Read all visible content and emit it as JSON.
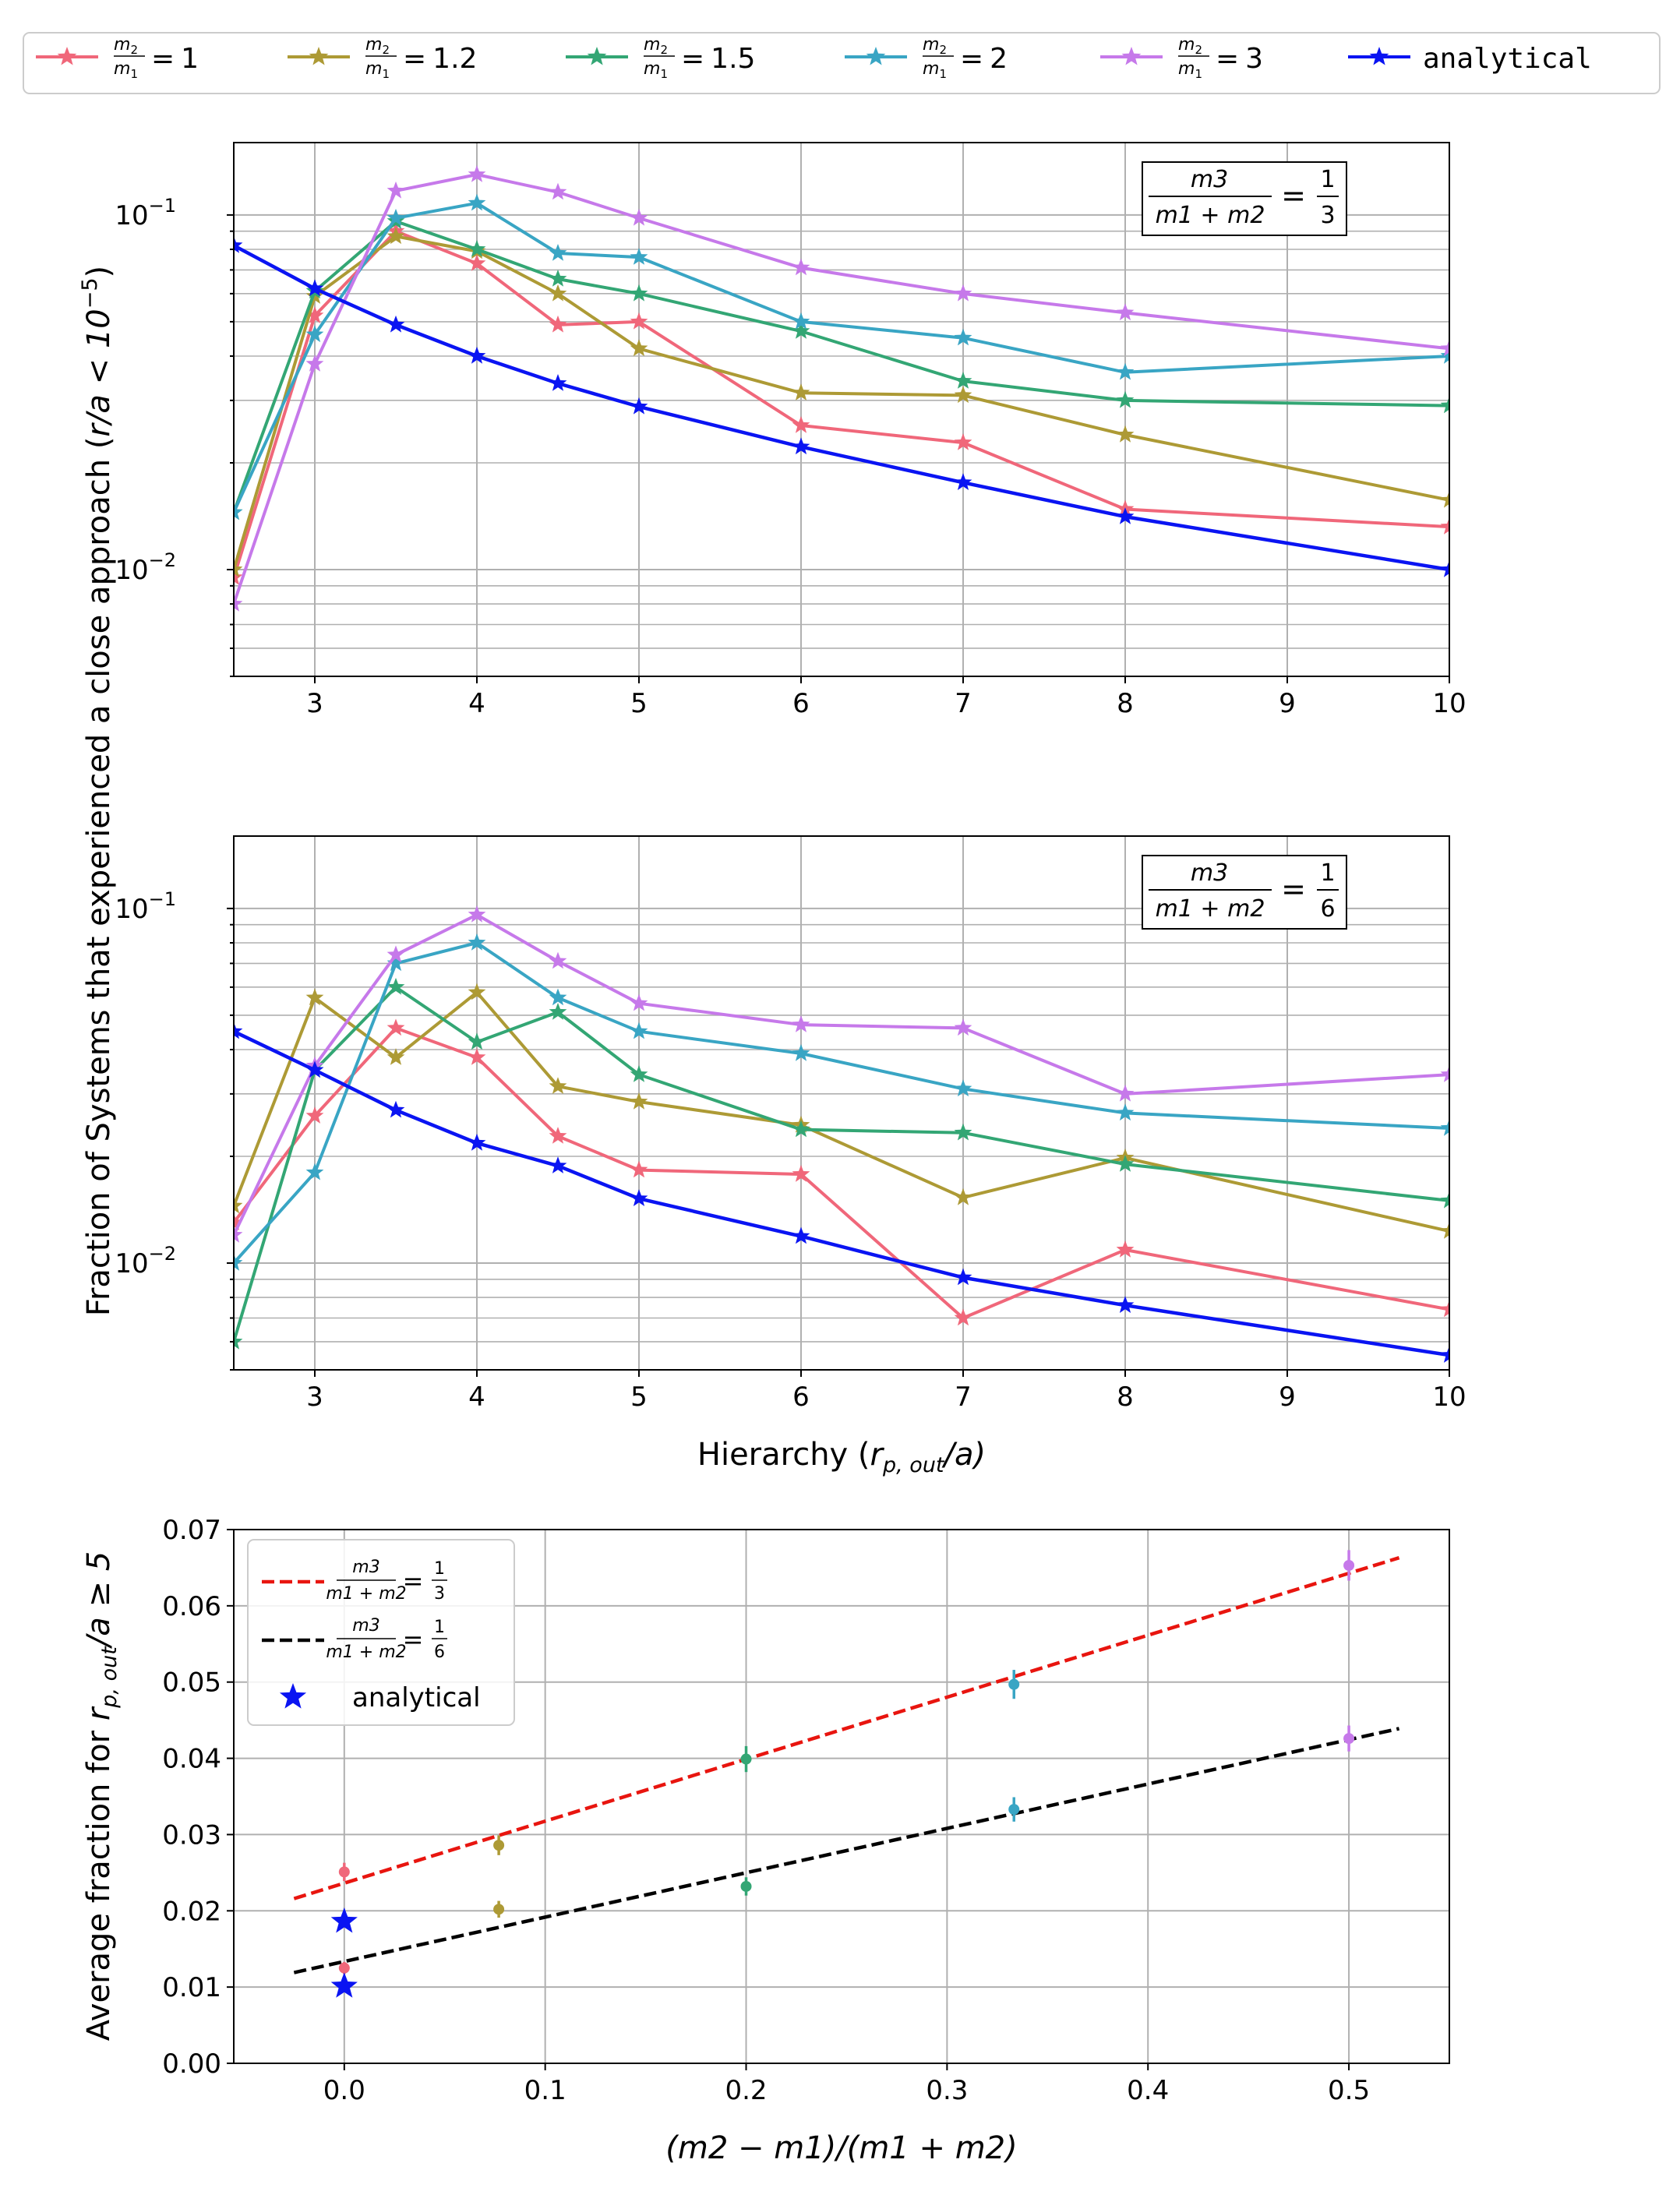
{
  "legend_top": [
    {
      "label": "m2/m1 = 1",
      "ratio_value": "1",
      "color": "#f0677a"
    },
    {
      "label": "m2/m1 = 1.2",
      "ratio_value": "1.2",
      "color": "#ad9a35"
    },
    {
      "label": "m2/m1 = 1.5",
      "ratio_value": "1.5",
      "color": "#33a674"
    },
    {
      "label": "m2/m1 = 2",
      "ratio_value": "2",
      "color": "#39a5c4"
    },
    {
      "label": "m2/m1 = 3",
      "ratio_value": "3",
      "color": "#c679ea"
    },
    {
      "label": "analytical",
      "ratio_value": "",
      "color": "#0a14f2"
    }
  ],
  "legend_ratio_num": "m",
  "legend_ratio_num_sub": "2",
  "legend_ratio_den": "m",
  "legend_ratio_den_sub": "1",
  "legend_equals": "=",
  "shared_ylabel_prefix": "Fraction of Systems that experienced a close approach (",
  "shared_ylabel_math": "r/a < 10",
  "shared_ylabel_exp": "−5",
  "shared_ylabel_suffix": ")",
  "chart_data": [
    {
      "type": "line",
      "panel": "top",
      "yscale": "log",
      "xlim": [
        2.5,
        10
      ],
      "ylim": [
        0.005,
        0.16
      ],
      "xticks": [
        "3",
        "4",
        "5",
        "6",
        "7",
        "8",
        "9",
        "10"
      ],
      "yticks": [
        "10",
        "10"
      ],
      "ytick_exps": [
        "−1",
        "−2"
      ],
      "annotation": {
        "num": "m3",
        "den": "m1 + m2",
        "value_num": "1",
        "value_den": "3"
      },
      "x": [
        2.5,
        3,
        3.5,
        4,
        4.5,
        5,
        6,
        7,
        8,
        10
      ],
      "series": [
        {
          "name": "m2/m1 = 1",
          "values": [
            0.0095,
            0.052,
            0.09,
            0.073,
            0.049,
            0.05,
            0.0255,
            0.0228,
            0.0148,
            0.0132
          ]
        },
        {
          "name": "m2/m1 = 1.2",
          "values": [
            0.01,
            0.059,
            0.087,
            0.079,
            0.06,
            0.042,
            0.0315,
            0.031,
            0.024,
            0.0157
          ]
        },
        {
          "name": "m2/m1 = 1.5",
          "values": [
            0.0145,
            0.061,
            0.096,
            0.08,
            0.066,
            0.06,
            0.047,
            0.034,
            0.03,
            0.029
          ]
        },
        {
          "name": "m2/m1 = 2",
          "values": [
            0.0145,
            0.046,
            0.098,
            0.108,
            0.078,
            0.076,
            0.05,
            0.045,
            0.036,
            0.04
          ]
        },
        {
          "name": "m2/m1 = 3",
          "values": [
            0.008,
            0.038,
            0.117,
            0.13,
            0.116,
            0.098,
            0.071,
            0.06,
            0.053,
            0.042
          ]
        },
        {
          "name": "analytical",
          "values": [
            0.082,
            0.062,
            0.049,
            0.04,
            0.0335,
            0.0288,
            0.0222,
            0.0176,
            0.0141,
            0.01
          ]
        }
      ]
    },
    {
      "type": "line",
      "panel": "middle",
      "yscale": "log",
      "xlim": [
        2.5,
        10
      ],
      "ylim": [
        0.005,
        0.16
      ],
      "xticks": [
        "3",
        "4",
        "5",
        "6",
        "7",
        "8",
        "9",
        "10"
      ],
      "yticks": [
        "10",
        "10"
      ],
      "ytick_exps": [
        "−1",
        "−2"
      ],
      "xlabel_prefix": "Hierarchy (",
      "xlabel_math": "r",
      "xlabel_sub": "p, out",
      "xlabel_suffix": "/a)",
      "annotation": {
        "num": "m3",
        "den": "m1 + m2",
        "value_num": "1",
        "value_den": "6"
      },
      "x": [
        2.5,
        3,
        3.5,
        4,
        4.5,
        5,
        6,
        7,
        8,
        10
      ],
      "series": [
        {
          "name": "m2/m1 = 1",
          "values": [
            0.013,
            0.026,
            0.046,
            0.038,
            0.0228,
            0.0183,
            0.0178,
            0.007,
            0.0109,
            0.0074
          ]
        },
        {
          "name": "m2/m1 = 1.2",
          "values": [
            0.0145,
            0.056,
            0.038,
            0.058,
            0.0315,
            0.0285,
            0.0245,
            0.0153,
            0.0198,
            0.0123
          ]
        },
        {
          "name": "m2/m1 = 1.5",
          "values": [
            0.006,
            0.035,
            0.06,
            0.042,
            0.051,
            0.034,
            0.0238,
            0.0233,
            0.019,
            0.015
          ]
        },
        {
          "name": "m2/m1 = 2",
          "values": [
            0.01,
            0.018,
            0.07,
            0.08,
            0.056,
            0.045,
            0.039,
            0.031,
            0.0265,
            0.024
          ]
        },
        {
          "name": "m2/m1 = 3",
          "values": [
            0.012,
            0.036,
            0.074,
            0.096,
            0.071,
            0.054,
            0.047,
            0.046,
            0.03,
            0.034
          ]
        },
        {
          "name": "analytical",
          "values": [
            0.045,
            0.035,
            0.027,
            0.0218,
            0.0188,
            0.0152,
            0.0119,
            0.0091,
            0.0076,
            0.0055
          ]
        }
      ]
    },
    {
      "type": "scatter",
      "panel": "bottom",
      "xlim": [
        -0.055,
        0.55
      ],
      "ylim": [
        0,
        0.07
      ],
      "xticks": [
        "0.0",
        "0.1",
        "0.2",
        "0.3",
        "0.4",
        "0.5"
      ],
      "yticks": [
        "0.00",
        "0.01",
        "0.02",
        "0.03",
        "0.04",
        "0.05",
        "0.06",
        "0.07"
      ],
      "xlabel": "(m2 − m1)/(m1 + m2)",
      "ylabel": "Average fraction for r_p,out/a ≥ 5",
      "ylabel_prefix": "Average fraction for ",
      "ylabel_math": "r",
      "ylabel_sub": "p, out",
      "ylabel_suffix": "/a ≥ 5",
      "fit_lines": [
        {
          "name": "m3/(m1+m2) = 1/3",
          "value_num": "1",
          "value_den": "3",
          "color": "#e8150f",
          "x": [
            -0.025,
            0.525
          ],
          "y": [
            0.0216,
            0.0663
          ]
        },
        {
          "name": "m3/(m1+m2) = 1/6",
          "value_num": "1",
          "value_den": "6",
          "color": "#000000",
          "x": [
            -0.025,
            0.525
          ],
          "y": [
            0.0119,
            0.0439
          ]
        }
      ],
      "points": [
        {
          "x": 0.0,
          "y": 0.0251,
          "err": 0.0012,
          "color": "#f0677a"
        },
        {
          "x": 0.0,
          "y": 0.0125,
          "err": 0.0008,
          "color": "#f0677a"
        },
        {
          "x": 0.0769,
          "y": 0.0286,
          "err": 0.0013,
          "color": "#ad9a35"
        },
        {
          "x": 0.0769,
          "y": 0.0202,
          "err": 0.0011,
          "color": "#ad9a35"
        },
        {
          "x": 0.2,
          "y": 0.0399,
          "err": 0.0017,
          "color": "#33a674"
        },
        {
          "x": 0.2,
          "y": 0.0232,
          "err": 0.0012,
          "color": "#33a674"
        },
        {
          "x": 0.3333,
          "y": 0.0497,
          "err": 0.0019,
          "color": "#39a5c4"
        },
        {
          "x": 0.3333,
          "y": 0.0333,
          "err": 0.0016,
          "color": "#39a5c4"
        },
        {
          "x": 0.5,
          "y": 0.0653,
          "err": 0.002,
          "color": "#c679ea"
        },
        {
          "x": 0.5,
          "y": 0.0426,
          "err": 0.0017,
          "color": "#c679ea"
        }
      ],
      "analytical_points": [
        {
          "x": 0.0,
          "y": 0.0186
        },
        {
          "x": 0.0,
          "y": 0.0101
        }
      ],
      "legend_analytical": "analytical",
      "analytical_color": "#0a14f2"
    }
  ]
}
